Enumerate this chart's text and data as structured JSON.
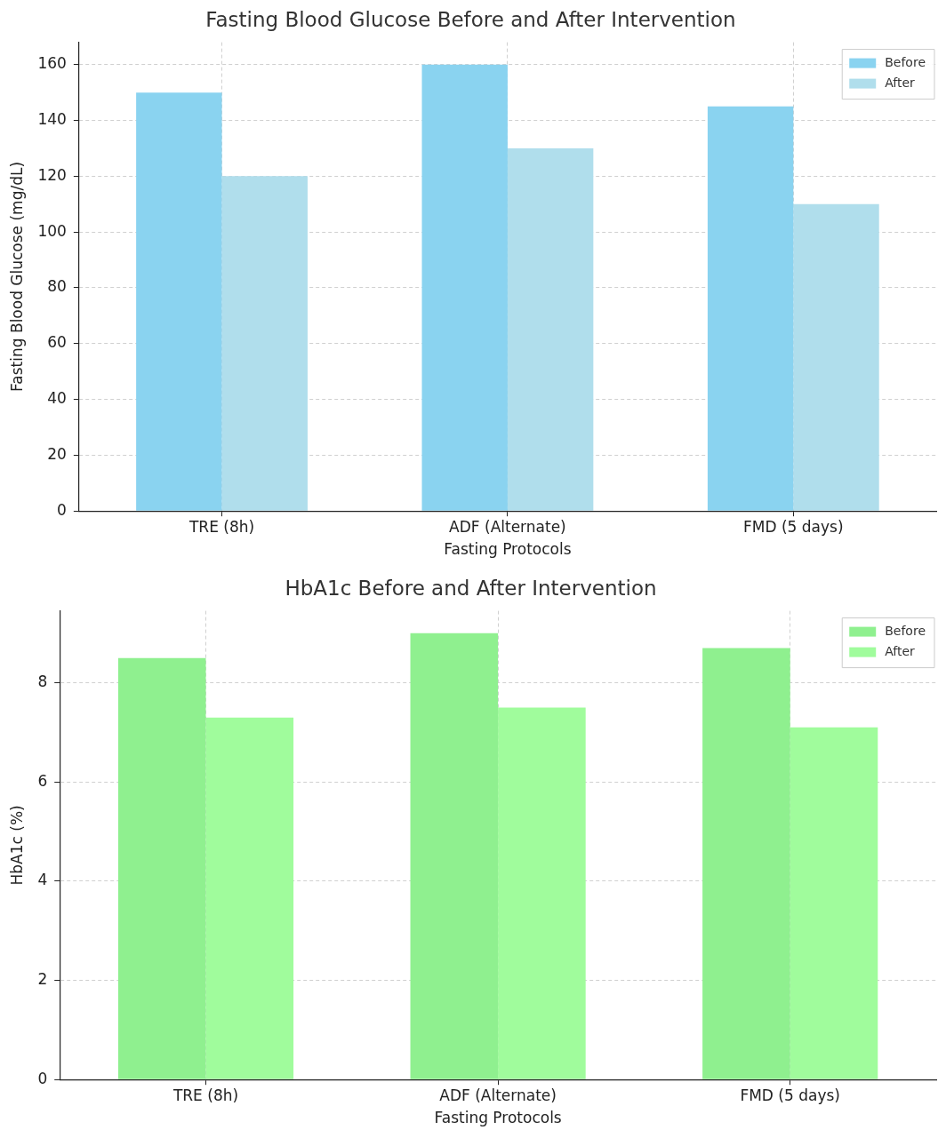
{
  "chart_data": [
    {
      "type": "bar",
      "title": "Fasting Blood Glucose Before and After Intervention",
      "xlabel": "Fasting Protocols",
      "ylabel": "Fasting Blood Glucose (mg/dL)",
      "categories": [
        "TRE (8h)",
        "ADF (Alternate)",
        "FMD (5 days)"
      ],
      "series": [
        {
          "name": "Before",
          "color": "#8ad3f0",
          "values": [
            150,
            160,
            145
          ]
        },
        {
          "name": "After",
          "color": "#b0deec",
          "values": [
            120,
            130,
            110
          ]
        }
      ],
      "ylim": [
        0,
        168
      ],
      "yticks": [
        0,
        20,
        40,
        60,
        80,
        100,
        120,
        140,
        160
      ],
      "grid": true,
      "legend": "top right"
    },
    {
      "type": "bar",
      "title": "HbA1c Before and After Intervention",
      "xlabel": "Fasting Protocols",
      "ylabel": "HbA1c (%)",
      "categories": [
        "TRE (8h)",
        "ADF (Alternate)",
        "FMD (5 days)"
      ],
      "series": [
        {
          "name": "Before",
          "color": "#8ff08f",
          "values": [
            8.5,
            9.0,
            8.7
          ]
        },
        {
          "name": "After",
          "color": "#a0fc9c",
          "values": [
            7.3,
            7.5,
            7.1
          ]
        }
      ],
      "ylim": [
        0,
        9.45
      ],
      "yticks": [
        0,
        2,
        4,
        6,
        8
      ],
      "grid": true,
      "legend": "top right"
    }
  ]
}
